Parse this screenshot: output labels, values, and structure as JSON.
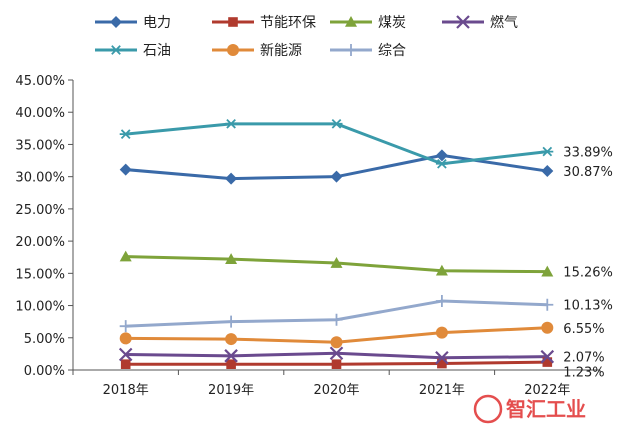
{
  "chart_data": {
    "type": "line",
    "categories": [
      "2018年",
      "2019年",
      "2020年",
      "2021年",
      "2022年"
    ],
    "ylim": [
      0,
      45
    ],
    "yticks": [
      "0.00%",
      "5.00%",
      "10.00%",
      "15.00%",
      "20.00%",
      "25.00%",
      "30.00%",
      "35.00%",
      "40.00%",
      "45.00%"
    ],
    "legend_position": "top",
    "grid": false,
    "series": [
      {
        "name": "电力",
        "values": [
          31.1,
          29.7,
          30.0,
          33.3,
          30.87
        ],
        "color": "#3a6aa8",
        "marker": "diamond",
        "end_label": "30.87%"
      },
      {
        "name": "节能环保",
        "values": [
          0.9,
          0.9,
          0.9,
          1.0,
          1.23
        ],
        "color": "#b03a2e",
        "marker": "square",
        "end_label": "1.23%"
      },
      {
        "name": "煤炭",
        "values": [
          17.6,
          17.2,
          16.6,
          15.4,
          15.26
        ],
        "color": "#7ea33a",
        "marker": "triangle",
        "end_label": "15.26%"
      },
      {
        "name": "燃气",
        "values": [
          2.4,
          2.2,
          2.6,
          1.9,
          2.07
        ],
        "color": "#6a4a8e",
        "marker": "x",
        "end_label": "2.07%"
      },
      {
        "name": "石油",
        "values": [
          36.6,
          38.2,
          38.2,
          32.0,
          33.89
        ],
        "color": "#3a9aaa",
        "marker": "star",
        "end_label": "33.89%"
      },
      {
        "name": "新能源",
        "values": [
          4.9,
          4.8,
          4.3,
          5.8,
          6.55
        ],
        "color": "#e08a3a",
        "marker": "circle",
        "end_label": "6.55%"
      },
      {
        "name": "综合",
        "values": [
          6.8,
          7.5,
          7.8,
          10.7,
          10.13
        ],
        "color": "#93a8cc",
        "marker": "plus",
        "end_label": "10.13%"
      }
    ]
  },
  "watermark": "智汇工业"
}
